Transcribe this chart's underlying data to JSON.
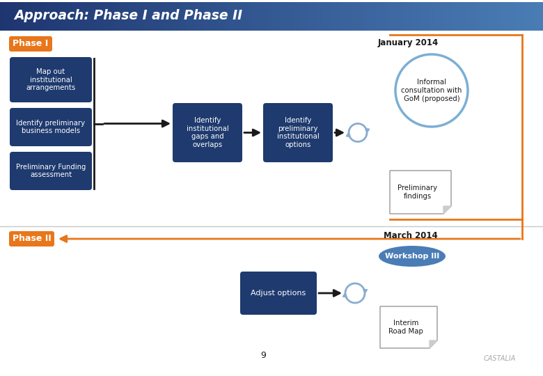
{
  "title": "Approach: Phase I and Phase II",
  "bg_color": "#ffffff",
  "title_color_left": "#1e3570",
  "title_color_right": "#4a7db5",
  "title_text_color": "#ffffff",
  "phase_box_color": "#e8761a",
  "phase_text_color": "#ffffff",
  "dark_box_color": "#1e3a6e",
  "dark_box_text": "#ffffff",
  "jan2014": "January 2014",
  "mar2014": "March 2014",
  "box1_text": "Map out\ninstitutional\narrangements",
  "box2_text": "Identify preliminary\nbusiness models",
  "box3_text": "Preliminary Funding\nassessment",
  "box4_text": "Identify\ninstitutional\ngaps and\noverlaps",
  "box5_text": "Identify\npreliminary\ninstitutional\noptions",
  "circle1_text": "Informal\nconsultation with\nGoM (proposed)",
  "circle1_edge": "#7bafd4",
  "doc1_text": "Preliminary\nfindings",
  "box6_text": "Adjust options",
  "ws_text": "Workshop III",
  "ws_color": "#4a7db5",
  "doc2_text": "Interim\nRoad Map",
  "number_label": "9",
  "arrow_color": "#1a1a1a",
  "bracket_color": "#1a1a1a",
  "phase_arrow_color": "#e8761a",
  "refresh_color": "#8aaccf",
  "sep_color": "#c8c8c8"
}
